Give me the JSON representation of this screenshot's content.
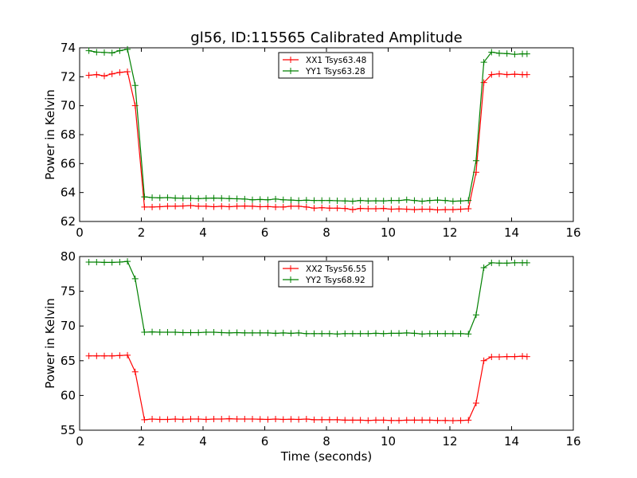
{
  "chart_data": {
    "type": "line",
    "title": "gl56, ID:115565 Calibrated Amplitude",
    "xlabel": "Time (seconds)",
    "colors": {
      "red": "#ff0000",
      "green": "#008000"
    },
    "x": [
      0.3,
      0.55,
      0.8,
      1.05,
      1.3,
      1.55,
      1.8,
      2.1,
      2.35,
      2.6,
      2.85,
      3.1,
      3.35,
      3.6,
      3.85,
      4.1,
      4.35,
      4.6,
      4.85,
      5.1,
      5.35,
      5.6,
      5.85,
      6.1,
      6.35,
      6.6,
      6.85,
      7.1,
      7.35,
      7.6,
      7.85,
      8.1,
      8.35,
      8.6,
      8.85,
      9.1,
      9.35,
      9.6,
      9.85,
      10.1,
      10.35,
      10.6,
      10.85,
      11.1,
      11.35,
      11.6,
      11.85,
      12.1,
      12.35,
      12.6,
      12.85,
      13.1,
      13.35,
      13.6,
      13.85,
      14.1,
      14.35,
      14.5
    ],
    "subplots": [
      {
        "ylabel": "Power in Kelvin",
        "xlim": [
          0,
          16
        ],
        "ylim": [
          62,
          74
        ],
        "xticks": [
          0,
          2,
          4,
          6,
          8,
          10,
          12,
          14,
          16
        ],
        "yticks": [
          62,
          64,
          66,
          68,
          70,
          72,
          74
        ],
        "legend_position": "top-center",
        "series": [
          {
            "name": "XX1 Tsys63.48",
            "color": "#ff0000",
            "values": [
              72.1,
              72.15,
              72.05,
              72.2,
              72.3,
              72.35,
              70.0,
              63.0,
              63.0,
              63.02,
              63.05,
              63.05,
              63.07,
              63.1,
              63.05,
              63.05,
              63.02,
              63.05,
              63.02,
              63.05,
              63.07,
              63.05,
              63.02,
              63.03,
              63.0,
              63.0,
              63.05,
              63.05,
              63.0,
              62.92,
              62.95,
              62.92,
              62.92,
              62.9,
              62.82,
              62.9,
              62.88,
              62.88,
              62.9,
              62.85,
              62.87,
              62.85,
              62.82,
              62.85,
              62.85,
              62.8,
              62.82,
              62.82,
              62.85,
              62.88,
              65.4,
              71.6,
              72.15,
              72.2,
              72.15,
              72.18,
              72.15,
              72.15
            ]
          },
          {
            "name": "YY1 Tsys63.28",
            "color": "#008000",
            "values": [
              73.8,
              73.7,
              73.68,
              73.65,
              73.8,
              73.9,
              71.4,
              63.7,
              63.65,
              63.63,
              63.65,
              63.62,
              63.6,
              63.6,
              63.58,
              63.6,
              63.62,
              63.6,
              63.58,
              63.57,
              63.55,
              63.5,
              63.52,
              63.5,
              63.55,
              63.5,
              63.48,
              63.45,
              63.47,
              63.45,
              63.45,
              63.45,
              63.43,
              63.42,
              63.4,
              63.45,
              63.42,
              63.43,
              63.42,
              63.45,
              63.45,
              63.5,
              63.45,
              63.4,
              63.45,
              63.48,
              63.45,
              63.4,
              63.42,
              63.45,
              66.2,
              73.0,
              73.7,
              73.62,
              73.6,
              73.55,
              73.58,
              73.58
            ]
          }
        ]
      },
      {
        "ylabel": "Power in Kelvin",
        "xlim": [
          0,
          16
        ],
        "ylim": [
          55,
          80
        ],
        "xticks": [
          0,
          2,
          4,
          6,
          8,
          10,
          12,
          14,
          16
        ],
        "yticks": [
          55,
          60,
          65,
          70,
          75,
          80
        ],
        "legend_position": "top-center",
        "series": [
          {
            "name": "XX2 Tsys56.55",
            "color": "#ff0000",
            "values": [
              65.7,
              65.7,
              65.7,
              65.7,
              65.75,
              65.8,
              63.4,
              56.5,
              56.6,
              56.55,
              56.55,
              56.6,
              56.55,
              56.6,
              56.6,
              56.55,
              56.6,
              56.6,
              56.65,
              56.6,
              56.6,
              56.6,
              56.58,
              56.55,
              56.6,
              56.55,
              56.58,
              56.55,
              56.6,
              56.5,
              56.5,
              56.5,
              56.5,
              56.45,
              56.45,
              56.45,
              56.4,
              56.45,
              56.45,
              56.4,
              56.4,
              56.45,
              56.45,
              56.45,
              56.45,
              56.4,
              56.4,
              56.38,
              56.4,
              56.45,
              58.9,
              65.0,
              65.55,
              65.55,
              65.6,
              65.6,
              65.65,
              65.6
            ]
          },
          {
            "name": "YY2 Tsys68.92",
            "color": "#008000",
            "values": [
              79.2,
              79.2,
              79.15,
              79.15,
              79.2,
              79.3,
              76.8,
              69.1,
              69.15,
              69.1,
              69.1,
              69.1,
              69.05,
              69.05,
              69.05,
              69.1,
              69.1,
              69.05,
              69.0,
              69.05,
              69.0,
              69.0,
              69.0,
              69.0,
              68.95,
              69.0,
              68.95,
              69.0,
              68.9,
              68.9,
              68.9,
              68.9,
              68.85,
              68.9,
              68.9,
              68.9,
              68.9,
              68.95,
              68.9,
              68.95,
              68.95,
              69.0,
              68.95,
              68.85,
              68.9,
              68.9,
              68.9,
              68.9,
              68.9,
              68.85,
              71.6,
              78.4,
              79.1,
              79.05,
              79.05,
              79.1,
              79.1,
              79.1
            ]
          }
        ]
      }
    ]
  }
}
